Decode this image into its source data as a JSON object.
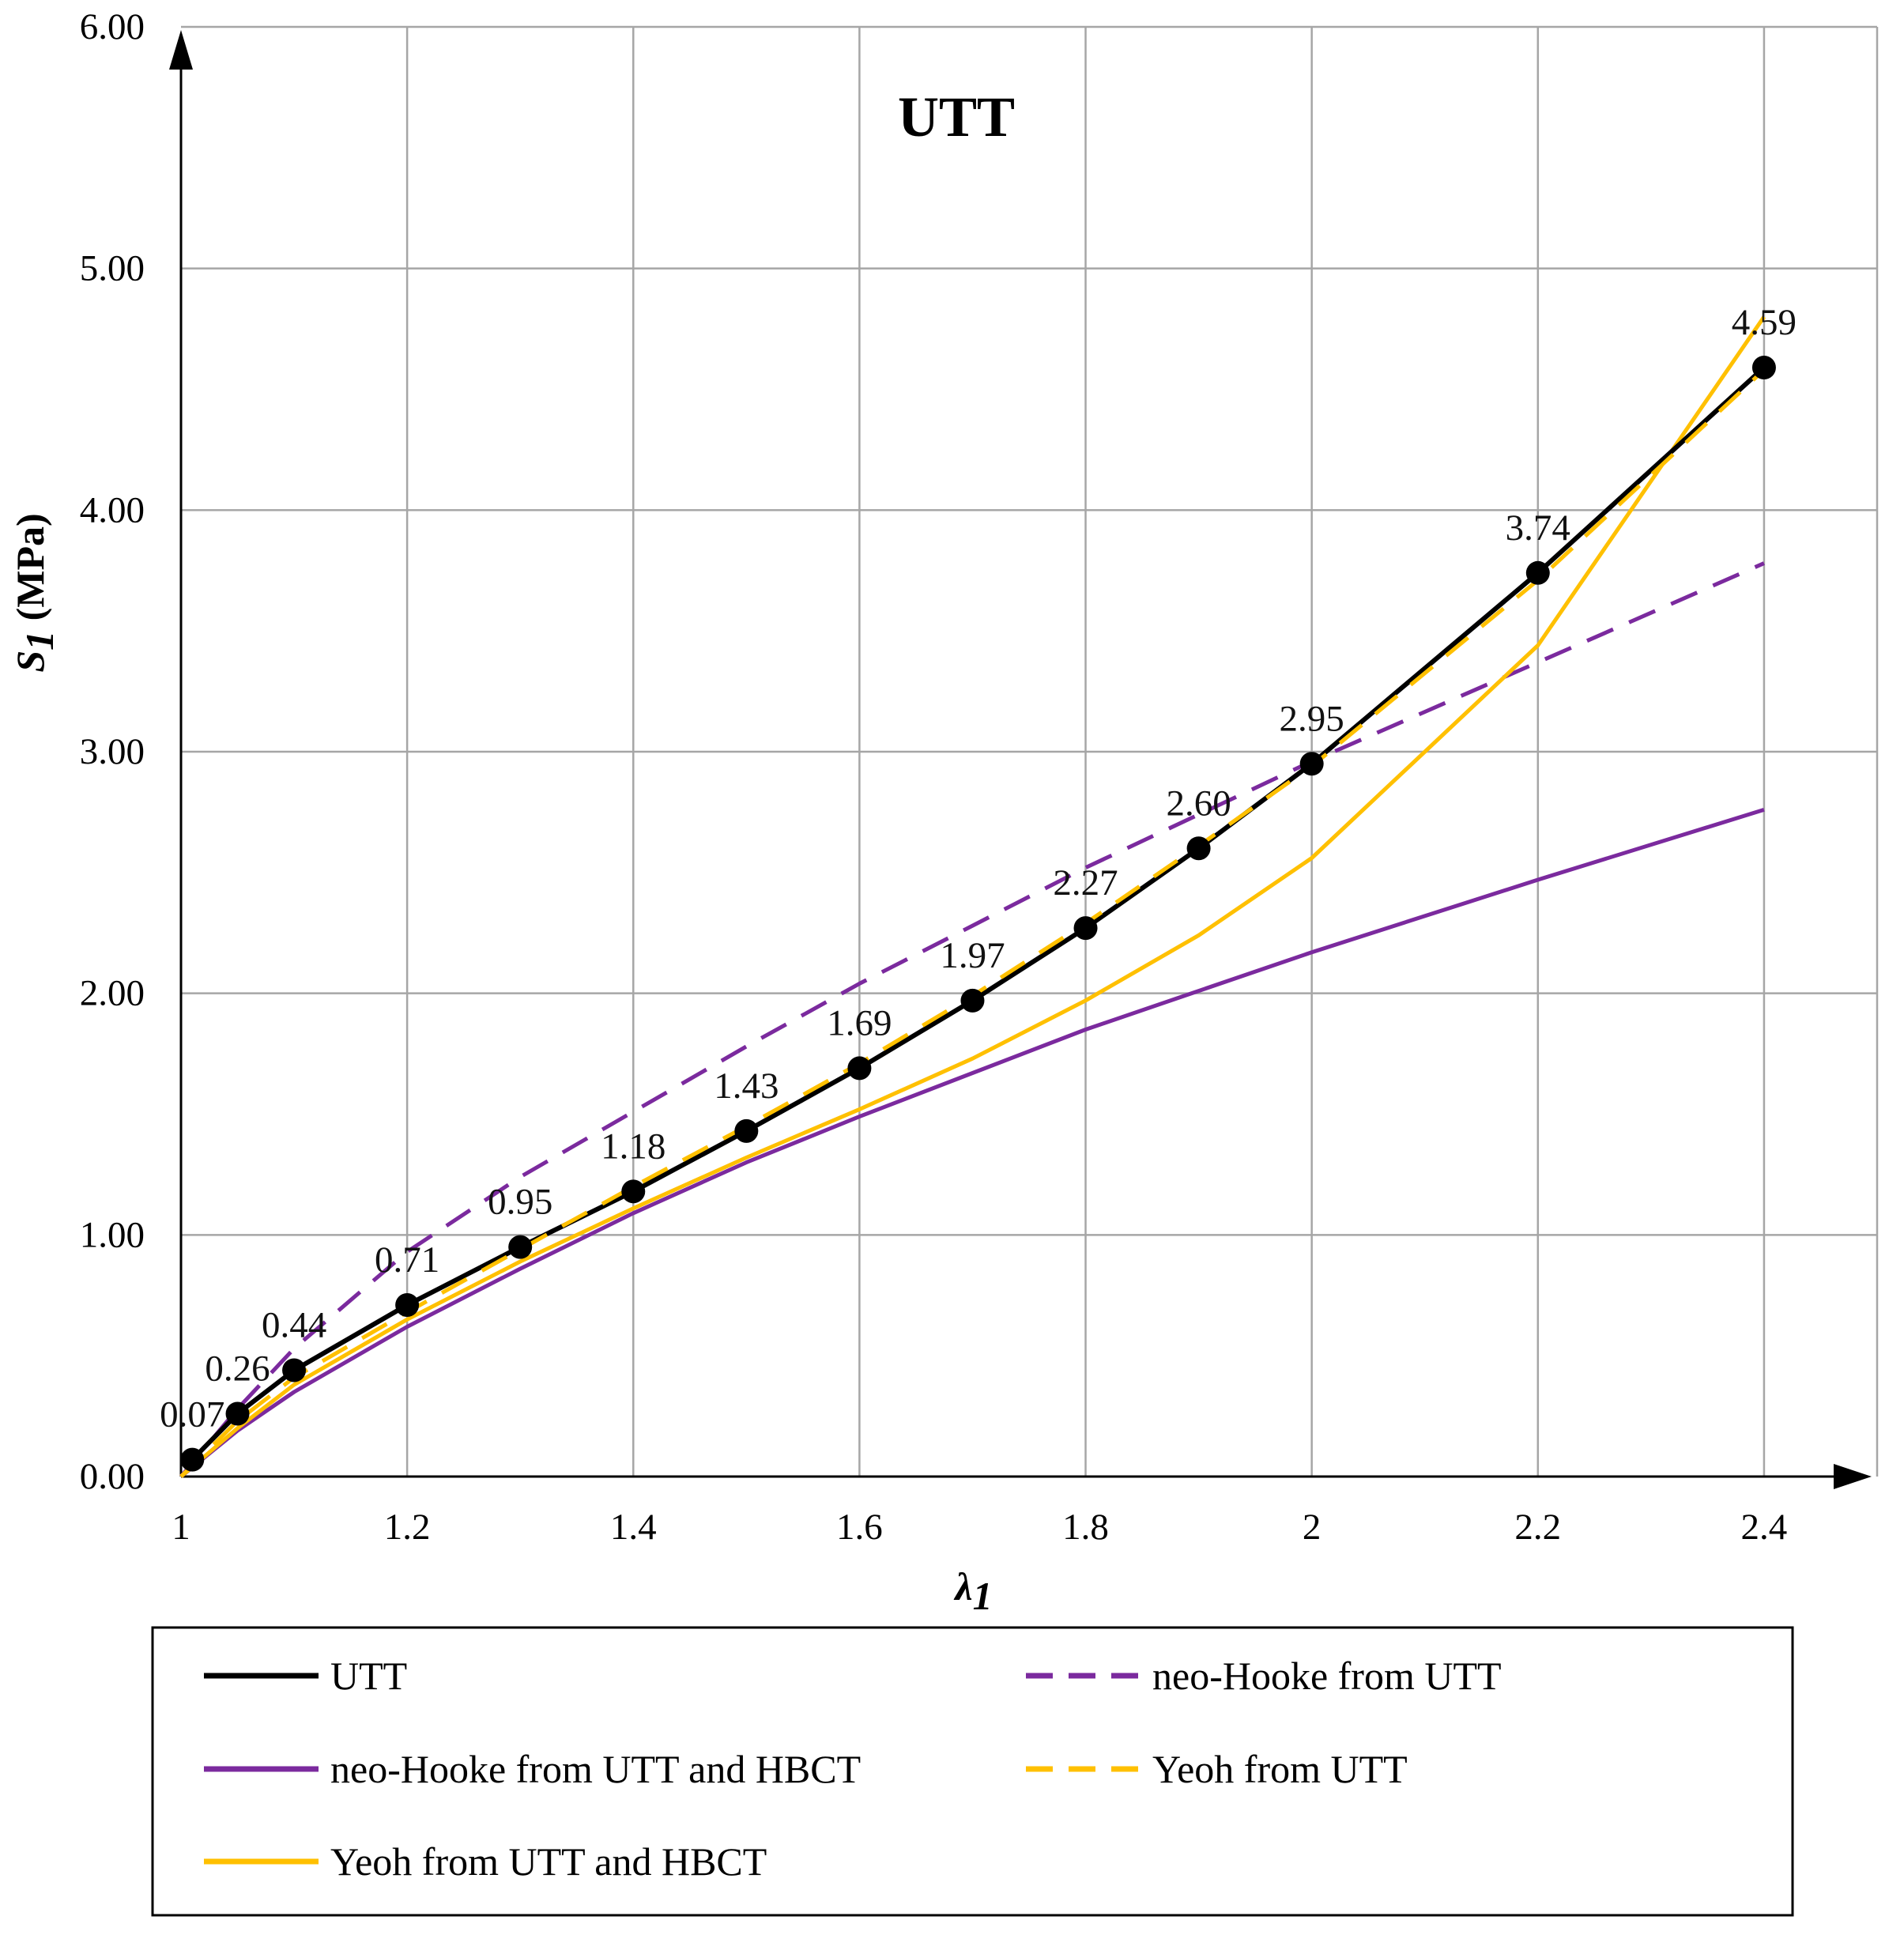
{
  "chart_data": {
    "type": "line",
    "title": "UTT",
    "xlabel": "λ",
    "xlabel_sub": "1",
    "ylabel": "S",
    "ylabel_sub": "1",
    "ylabel_unit": " (MPa)",
    "xlim": [
      1,
      2.5
    ],
    "ylim": [
      0,
      6
    ],
    "grid": true,
    "legend_position": "bottom",
    "x_ticks": [
      1,
      1.2,
      1.4,
      1.6,
      1.8,
      2,
      2.2,
      2.4
    ],
    "x_tick_labels": [
      "1",
      "1.2",
      "1.4",
      "1.6",
      "1.8",
      "2",
      "2.2",
      "2.4"
    ],
    "y_ticks": [
      0,
      1,
      2,
      3,
      4,
      5,
      6
    ],
    "y_tick_labels": [
      "0.00",
      "1.00",
      "2.00",
      "3.00",
      "4.00",
      "5.00",
      "6.00"
    ],
    "series": [
      {
        "name": "UTT",
        "color": "#000000",
        "dash": "solid",
        "markers": true,
        "x": [
          1.01,
          1.05,
          1.1,
          1.2,
          1.3,
          1.4,
          1.5,
          1.6,
          1.7,
          1.8,
          1.9,
          2.0,
          2.2,
          2.4
        ],
        "y": [
          0.07,
          0.26,
          0.44,
          0.71,
          0.95,
          1.18,
          1.43,
          1.69,
          1.97,
          2.27,
          2.6,
          2.95,
          3.74,
          4.59
        ],
        "labels": [
          "0.07",
          "0.26",
          "0.44",
          "0.71",
          "0.95",
          "1.18",
          "1.43",
          "1.69",
          "1.97",
          "2.27",
          "2.60",
          "2.95",
          "3.74",
          "4.59"
        ]
      },
      {
        "name": "neo-Hooke from UTT",
        "color": "#7B2A9E",
        "dash": "dashed",
        "x": [
          1.0,
          1.05,
          1.1,
          1.2,
          1.3,
          1.4,
          1.5,
          1.6,
          1.7,
          1.8,
          1.9,
          2.0,
          2.2,
          2.4
        ],
        "y": [
          0.0,
          0.28,
          0.53,
          0.93,
          1.24,
          1.51,
          1.78,
          2.04,
          2.28,
          2.52,
          2.74,
          2.96,
          3.37,
          3.78
        ]
      },
      {
        "name": "neo-Hooke from UTT and HBCT",
        "color": "#7B2A9E",
        "dash": "solid",
        "x": [
          1.0,
          1.05,
          1.1,
          1.2,
          1.3,
          1.4,
          1.5,
          1.6,
          1.7,
          1.8,
          1.9,
          2.0,
          2.2,
          2.4
        ],
        "y": [
          0.0,
          0.19,
          0.35,
          0.62,
          0.86,
          1.09,
          1.3,
          1.49,
          1.67,
          1.85,
          2.01,
          2.17,
          2.47,
          2.76
        ]
      },
      {
        "name": "Yeoh from UTT",
        "color": "#FFC000",
        "dash": "dashed",
        "x": [
          1.0,
          1.05,
          1.1,
          1.2,
          1.3,
          1.4,
          1.5,
          1.6,
          1.7,
          1.8,
          1.9,
          2.0,
          2.2,
          2.4
        ],
        "y": [
          0.0,
          0.23,
          0.41,
          0.68,
          0.94,
          1.2,
          1.45,
          1.71,
          1.99,
          2.29,
          2.61,
          2.94,
          3.71,
          4.58
        ]
      },
      {
        "name": "Yeoh from UTT and HBCT",
        "color": "#FFC000",
        "dash": "solid",
        "x": [
          1.0,
          1.05,
          1.1,
          1.2,
          1.3,
          1.4,
          1.5,
          1.6,
          1.7,
          1.8,
          1.9,
          2.0,
          2.2,
          2.4
        ],
        "y": [
          0.0,
          0.2,
          0.38,
          0.65,
          0.89,
          1.11,
          1.32,
          1.52,
          1.73,
          1.97,
          2.24,
          2.56,
          3.44,
          4.8
        ]
      }
    ]
  }
}
